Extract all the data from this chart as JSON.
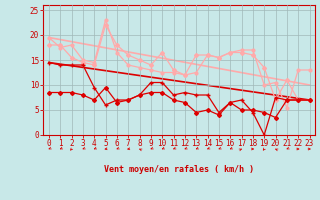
{
  "xlabel": "Vent moyen/en rafales ( km/h )",
  "xlim": [
    -0.5,
    23.5
  ],
  "ylim": [
    0,
    26
  ],
  "yticks": [
    0,
    5,
    10,
    15,
    20,
    25
  ],
  "xticks": [
    0,
    1,
    2,
    3,
    4,
    5,
    6,
    7,
    8,
    9,
    10,
    11,
    12,
    13,
    14,
    15,
    16,
    17,
    18,
    19,
    20,
    21,
    22,
    23
  ],
  "bg_color": "#c8e8e8",
  "grid_color": "#a0b8b8",
  "line1_x": [
    0,
    1,
    2,
    3,
    4,
    5,
    6,
    7,
    8,
    9,
    10,
    11,
    12,
    13,
    14,
    15,
    16,
    17,
    18,
    19,
    20,
    21,
    22,
    23
  ],
  "line1_y": [
    19.5,
    17.5,
    18.0,
    15.0,
    14.5,
    23.0,
    16.5,
    14.0,
    13.5,
    13.0,
    12.5,
    12.5,
    12.0,
    12.5,
    16.0,
    15.5,
    16.5,
    17.0,
    17.0,
    10.0,
    10.5,
    5.5,
    13.0,
    13.0
  ],
  "line1_color": "#ffaaaa",
  "line1_marker": "o",
  "line1_ms": 2.0,
  "line1_lw": 0.9,
  "line2_x": [
    0,
    1,
    2,
    3,
    4,
    5,
    6,
    7,
    8,
    9,
    10,
    11,
    12,
    13,
    14,
    15,
    16,
    17,
    18,
    19,
    20,
    21,
    22,
    23
  ],
  "line2_y": [
    18.0,
    18.0,
    15.5,
    14.5,
    14.0,
    22.0,
    18.0,
    16.0,
    15.0,
    14.0,
    16.5,
    13.0,
    12.0,
    16.0,
    16.0,
    15.5,
    16.5,
    16.5,
    16.0,
    13.5,
    7.0,
    11.0,
    7.0,
    7.0
  ],
  "line2_color": "#ffaaaa",
  "line2_marker": "D",
  "line2_ms": 2.0,
  "line2_lw": 0.9,
  "line3_x": [
    0,
    1,
    2,
    3,
    4,
    5,
    6,
    7,
    8,
    9,
    10,
    11,
    12,
    13,
    14,
    15,
    16,
    17,
    18,
    19,
    20,
    21,
    22,
    23
  ],
  "line3_y": [
    14.5,
    14.0,
    14.0,
    14.0,
    9.5,
    6.0,
    7.0,
    7.0,
    8.0,
    10.5,
    10.5,
    8.0,
    8.5,
    8.0,
    8.0,
    4.5,
    6.5,
    7.0,
    4.5,
    0.0,
    7.5,
    7.0,
    7.0,
    7.0
  ],
  "line3_color": "#dd0000",
  "line3_marker": "+",
  "line3_ms": 3.5,
  "line3_lw": 0.9,
  "line4_x": [
    0,
    1,
    2,
    3,
    4,
    5,
    6,
    7,
    8,
    9,
    10,
    11,
    12,
    13,
    14,
    15,
    16,
    17,
    18,
    19,
    20,
    21,
    22,
    23
  ],
  "line4_y": [
    8.5,
    8.5,
    8.5,
    8.0,
    7.0,
    9.5,
    6.5,
    7.0,
    8.0,
    8.5,
    8.5,
    7.0,
    6.5,
    4.5,
    5.0,
    4.0,
    6.5,
    5.0,
    5.0,
    4.5,
    3.5,
    7.0,
    7.0,
    7.0
  ],
  "line4_color": "#dd0000",
  "line4_marker": "D",
  "line4_ms": 2.0,
  "line4_lw": 0.9,
  "trend1_x": [
    0,
    23
  ],
  "trend1_y": [
    19.5,
    10.0
  ],
  "trend1_color": "#ffaaaa",
  "trend1_lw": 1.2,
  "trend2_x": [
    0,
    23
  ],
  "trend2_y": [
    14.5,
    7.0
  ],
  "trend2_color": "#dd0000",
  "trend2_lw": 1.2,
  "wind_dirs": [
    225,
    225,
    200,
    225,
    225,
    250,
    225,
    250,
    315,
    225,
    225,
    225,
    225,
    225,
    225,
    225,
    225,
    45,
    90,
    200,
    315,
    225,
    90,
    90
  ],
  "arrow_color": "#dd0000"
}
